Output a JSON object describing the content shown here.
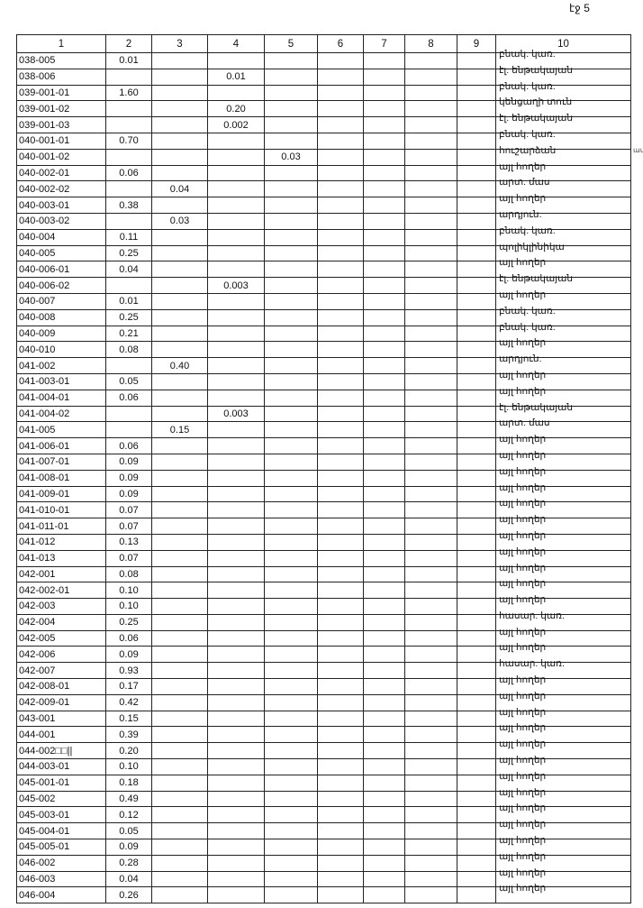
{
  "page_label": "էջ 5",
  "margin_mark": "ամ",
  "columns": [
    "1",
    "2",
    "3",
    "4",
    "5",
    "6",
    "7",
    "8",
    "9",
    "10"
  ],
  "rows": [
    [
      "038-005",
      "0.01",
      "",
      "",
      "",
      "",
      "",
      "",
      "",
      "բնակ. կառ."
    ],
    [
      "038-006",
      "",
      "",
      "0.01",
      "",
      "",
      "",
      "",
      "",
      "էլ. ենթակայան"
    ],
    [
      "039-001-01",
      "1.60",
      "",
      "",
      "",
      "",
      "",
      "",
      "",
      "բնակ. կառ."
    ],
    [
      "039-001-02",
      "",
      "",
      "0.20",
      "",
      "",
      "",
      "",
      "",
      "կենցաղի տուն"
    ],
    [
      "039-001-03",
      "",
      "",
      "0.002",
      "",
      "",
      "",
      "",
      "",
      "էլ. ենթակայան"
    ],
    [
      "040-001-01",
      "0.70",
      "",
      "",
      "",
      "",
      "",
      "",
      "",
      "բնակ. կառ."
    ],
    [
      "040-001-02",
      "",
      "",
      "",
      "0.03",
      "",
      "",
      "",
      "",
      "հուշարձան"
    ],
    [
      "040-002-01",
      "0.06",
      "",
      "",
      "",
      "",
      "",
      "",
      "",
      "այլ հողեր"
    ],
    [
      "040-002-02",
      "",
      "0.04",
      "",
      "",
      "",
      "",
      "",
      "",
      "արտ. մաս"
    ],
    [
      "040-003-01",
      "0.38",
      "",
      "",
      "",
      "",
      "",
      "",
      "",
      "այլ հողեր"
    ],
    [
      "040-003-02",
      "",
      "0.03",
      "",
      "",
      "",
      "",
      "",
      "",
      "արդյուն."
    ],
    [
      "040-004",
      "0.11",
      "",
      "",
      "",
      "",
      "",
      "",
      "",
      "բնակ. կառ."
    ],
    [
      "040-005",
      "0.25",
      "",
      "",
      "",
      "",
      "",
      "",
      "",
      "պոլիկլինիկա"
    ],
    [
      "040-006-01",
      "0.04",
      "",
      "",
      "",
      "",
      "",
      "",
      "",
      "այլ հողեր"
    ],
    [
      "040-006-02",
      "",
      "",
      "0.003",
      "",
      "",
      "",
      "",
      "",
      "էլ. ենթակայան"
    ],
    [
      "040-007",
      "0.01",
      "",
      "",
      "",
      "",
      "",
      "",
      "",
      "այլ հողեր"
    ],
    [
      "040-008",
      "0.25",
      "",
      "",
      "",
      "",
      "",
      "",
      "",
      "բնակ. կառ."
    ],
    [
      "040-009",
      "0.21",
      "",
      "",
      "",
      "",
      "",
      "",
      "",
      "բնակ. կառ."
    ],
    [
      "040-010",
      "0.08",
      "",
      "",
      "",
      "",
      "",
      "",
      "",
      "այլ հողեր"
    ],
    [
      "041-002",
      "",
      "0.40",
      "",
      "",
      "",
      "",
      "",
      "",
      "արդյուն."
    ],
    [
      "041-003-01",
      "0.05",
      "",
      "",
      "",
      "",
      "",
      "",
      "",
      "այլ հողեր"
    ],
    [
      "041-004-01",
      "0.06",
      "",
      "",
      "",
      "",
      "",
      "",
      "",
      "այլ հողեր"
    ],
    [
      "041-004-02",
      "",
      "",
      "0.003",
      "",
      "",
      "",
      "",
      "",
      "էլ. ենթակայան"
    ],
    [
      "041-005",
      "",
      "0.15",
      "",
      "",
      "",
      "",
      "",
      "",
      "արտ. մաս"
    ],
    [
      "041-006-01",
      "0.06",
      "",
      "",
      "",
      "",
      "",
      "",
      "",
      "այլ հողեր"
    ],
    [
      "041-007-01",
      "0.09",
      "",
      "",
      "",
      "",
      "",
      "",
      "",
      "այլ հողեր"
    ],
    [
      "041-008-01",
      "0.09",
      "",
      "",
      "",
      "",
      "",
      "",
      "",
      "այլ հողեր"
    ],
    [
      "041-009-01",
      "0.09",
      "",
      "",
      "",
      "",
      "",
      "",
      "",
      "այլ հողեր"
    ],
    [
      "041-010-01",
      "0.07",
      "",
      "",
      "",
      "",
      "",
      "",
      "",
      "այլ հողեր"
    ],
    [
      "041-011-01",
      "0.07",
      "",
      "",
      "",
      "",
      "",
      "",
      "",
      "այլ հողեր"
    ],
    [
      "041-012",
      "0.13",
      "",
      "",
      "",
      "",
      "",
      "",
      "",
      "այլ հողեր"
    ],
    [
      "041-013",
      "0.07",
      "",
      "",
      "",
      "",
      "",
      "",
      "",
      "այլ հողեր"
    ],
    [
      "042-001",
      "0.08",
      "",
      "",
      "",
      "",
      "",
      "",
      "",
      "այլ հողեր"
    ],
    [
      "042-002-01",
      "0.10",
      "",
      "",
      "",
      "",
      "",
      "",
      "",
      "այլ հողեր"
    ],
    [
      "042-003",
      "0.10",
      "",
      "",
      "",
      "",
      "",
      "",
      "",
      "այլ հողեր"
    ],
    [
      "042-004",
      "0.25",
      "",
      "",
      "",
      "",
      "",
      "",
      "",
      "հասար. կառ."
    ],
    [
      "042-005",
      "0.06",
      "",
      "",
      "",
      "",
      "",
      "",
      "",
      "այլ հողեր"
    ],
    [
      "042-006",
      "0.09",
      "",
      "",
      "",
      "",
      "",
      "",
      "",
      "այլ հողեր"
    ],
    [
      "042-007",
      "0.93",
      "",
      "",
      "",
      "",
      "",
      "",
      "",
      "հասար. կառ."
    ],
    [
      "042-008-01",
      "0.17",
      "",
      "",
      "",
      "",
      "",
      "",
      "",
      "այլ հողեր"
    ],
    [
      "042-009-01",
      "0.42",
      "",
      "",
      "",
      "",
      "",
      "",
      "",
      "այլ հողեր"
    ],
    [
      "043-001",
      "0.15",
      "",
      "",
      "",
      "",
      "",
      "",
      "",
      "այլ հողեր"
    ],
    [
      "044-001",
      "0.39",
      "",
      "",
      "",
      "",
      "",
      "",
      "",
      "այլ հողեր"
    ],
    [
      "044-002□□||",
      "0.20",
      "",
      "",
      "",
      "",
      "",
      "",
      "",
      "այլ հողեր"
    ],
    [
      "044-003-01",
      "0.10",
      "",
      "",
      "",
      "",
      "",
      "",
      "",
      "այլ հողեր"
    ],
    [
      "045-001-01",
      "0.18",
      "",
      "",
      "",
      "",
      "",
      "",
      "",
      "այլ հողեր"
    ],
    [
      "045-002",
      "0.49",
      "",
      "",
      "",
      "",
      "",
      "",
      "",
      "այլ հողեր"
    ],
    [
      "045-003-01",
      "0.12",
      "",
      "",
      "",
      "",
      "",
      "",
      "",
      "այլ հողեր"
    ],
    [
      "045-004-01",
      "0.05",
      "",
      "",
      "",
      "",
      "",
      "",
      "",
      "այլ հողեր"
    ],
    [
      "045-005-01",
      "0.09",
      "",
      "",
      "",
      "",
      "",
      "",
      "",
      "այլ հողեր"
    ],
    [
      "046-002",
      "0.28",
      "",
      "",
      "",
      "",
      "",
      "",
      "",
      "այլ հողեր"
    ],
    [
      "046-003",
      "0.04",
      "",
      "",
      "",
      "",
      "",
      "",
      "",
      "այլ հողեր"
    ],
    [
      "046-004",
      "0.26",
      "",
      "",
      "",
      "",
      "",
      "",
      "",
      "այլ հողեր"
    ]
  ]
}
